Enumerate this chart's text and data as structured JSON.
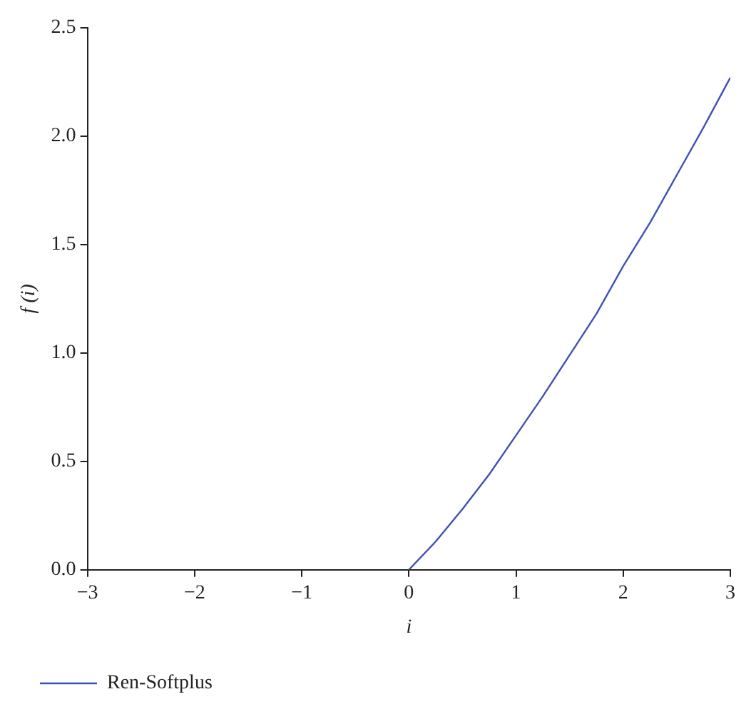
{
  "chart_data": {
    "type": "line",
    "xlabel": "i",
    "ylabel": "f (i)",
    "xlim": [
      -3,
      3
    ],
    "xticks": [
      {
        "value": -3,
        "label": "−3"
      },
      {
        "value": -2,
        "label": "−2"
      },
      {
        "value": -1,
        "label": "−1"
      },
      0,
      1,
      2,
      3
    ],
    "ylim": [
      0,
      2.5
    ],
    "yticks": [
      {
        "value": 0,
        "label": "0.0"
      },
      0.5,
      {
        "value": 1,
        "label": "1.0"
      },
      1.5,
      {
        "value": 2,
        "label": "2.0"
      },
      2.5
    ],
    "grid": false,
    "legend": "bottom left",
    "marker": "none",
    "line_style": "solid",
    "series": [
      {
        "name": "Ren-Softplus",
        "color": "#3f51b5",
        "x": [
          0,
          0.25,
          0.5,
          0.75,
          1,
          1.25,
          1.5,
          1.75,
          2,
          2.25,
          2.5,
          2.75,
          3
        ],
        "values": [
          0,
          0.13,
          0.28,
          0.44,
          0.62,
          0.8,
          0.99,
          1.18,
          1.4,
          1.6,
          1.82,
          2.04,
          2.27
        ]
      }
    ]
  }
}
